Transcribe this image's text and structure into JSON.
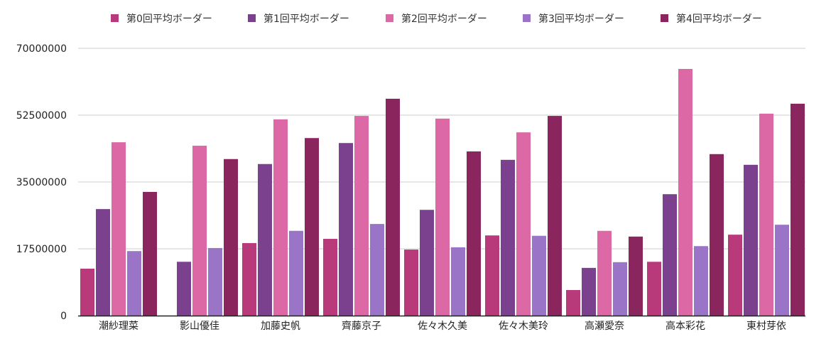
{
  "chart_data": {
    "type": "bar",
    "title": "",
    "xlabel": "",
    "ylabel": "",
    "ylim": [
      0,
      70000000
    ],
    "yticks": [
      "0",
      "17500000",
      "35000000",
      "52500000",
      "70000000"
    ],
    "ytick_values": [
      0,
      17500000,
      35000000,
      52500000,
      70000000
    ],
    "grid": true,
    "legend_position": "top",
    "categories": [
      "潮紗理菜",
      "影山優佳",
      "加藤史帆",
      "齊藤京子",
      "佐々木久美",
      "佐々木美玲",
      "高瀬愛奈",
      "高本彩花",
      "東村芽依"
    ],
    "series": [
      {
        "name": "第0回平均ボーダー",
        "color": "#b93a7b",
        "values": [
          12300000,
          0,
          19000000,
          20100000,
          17300000,
          21000000,
          6700000,
          14100000,
          21200000
        ]
      },
      {
        "name": "第1回平均ボーダー",
        "color": "#7b418e",
        "values": [
          27900000,
          14100000,
          39700000,
          45200000,
          27700000,
          40800000,
          12500000,
          31800000,
          39500000
        ]
      },
      {
        "name": "第2回平均ボーダー",
        "color": "#dd68a6",
        "values": [
          45400000,
          44500000,
          51400000,
          52300000,
          51600000,
          48000000,
          22200000,
          64600000,
          52900000
        ]
      },
      {
        "name": "第3回平均ボーダー",
        "color": "#9a74c6",
        "values": [
          16900000,
          17700000,
          22200000,
          24000000,
          17900000,
          20900000,
          14000000,
          18200000,
          23800000
        ]
      },
      {
        "name": "第4回平均ボーダー",
        "color": "#8b255e",
        "values": [
          32400000,
          41000000,
          46500000,
          56800000,
          43000000,
          52300000,
          20700000,
          42300000,
          55500000
        ]
      }
    ]
  }
}
